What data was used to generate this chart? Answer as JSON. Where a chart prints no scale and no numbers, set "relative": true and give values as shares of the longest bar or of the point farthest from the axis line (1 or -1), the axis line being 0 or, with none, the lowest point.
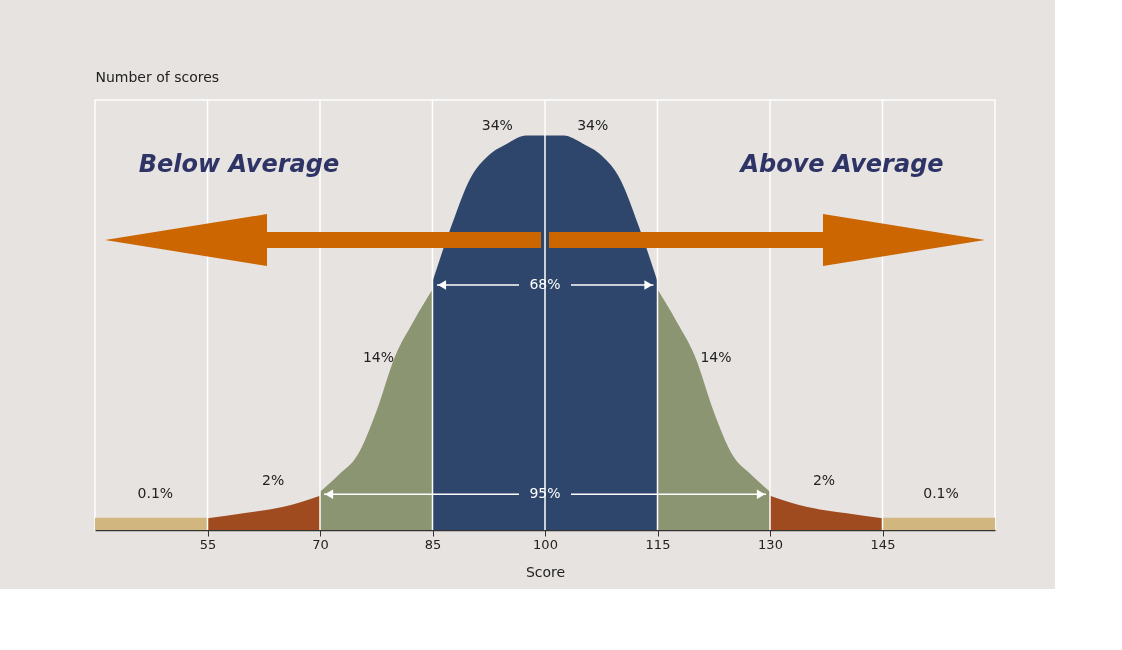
{
  "chart_data": {
    "type": "area",
    "relative": true,
    "xlabel": "Score",
    "ylabel": "Number of scores",
    "xlim": [
      40,
      160
    ],
    "xticks": [
      55,
      70,
      85,
      100,
      115,
      130,
      145
    ],
    "grid": "x",
    "series": [
      {
        "color": "#d2b67f",
        "x": [
          40,
          55
        ],
        "values": [
          0.031,
          0.031
        ]
      },
      {
        "color": "#a04b1f",
        "x": [
          55,
          60,
          65,
          70
        ],
        "values": [
          0.03,
          0.043,
          0.058,
          0.087
        ]
      },
      {
        "color": "#8b9572",
        "x": [
          70,
          72.5,
          75,
          77.5,
          80,
          82.5,
          85
        ],
        "values": [
          0.097,
          0.14,
          0.19,
          0.3,
          0.44,
          0.53,
          0.61
        ]
      },
      {
        "color": "#2e466b",
        "x": [
          85,
          87.5,
          90,
          92.5,
          95,
          97.5,
          100,
          102.5,
          105,
          107.5,
          110,
          112.5,
          115
        ],
        "values": [
          0.63,
          0.77,
          0.89,
          0.95,
          0.98,
          1.0,
          1.0,
          1.0,
          0.98,
          0.95,
          0.89,
          0.77,
          0.63
        ]
      },
      {
        "color": "#8b9572",
        "x": [
          115,
          117.5,
          120,
          122.5,
          125,
          127.5,
          130
        ],
        "values": [
          0.61,
          0.53,
          0.44,
          0.3,
          0.19,
          0.14,
          0.097
        ]
      },
      {
        "color": "#a04b1f",
        "x": [
          130,
          135,
          140,
          145
        ],
        "values": [
          0.087,
          0.058,
          0.043,
          0.03
        ]
      },
      {
        "color": "#d2b67f",
        "x": [
          145,
          160
        ],
        "values": [
          0.031,
          0.031
        ]
      }
    ],
    "annotations": [
      "Below Average",
      "Above Average",
      "34%",
      "34%",
      "68%",
      "95%",
      "14%",
      "14%",
      "2%",
      "2%",
      "0.1%",
      "0.1%"
    ]
  }
}
